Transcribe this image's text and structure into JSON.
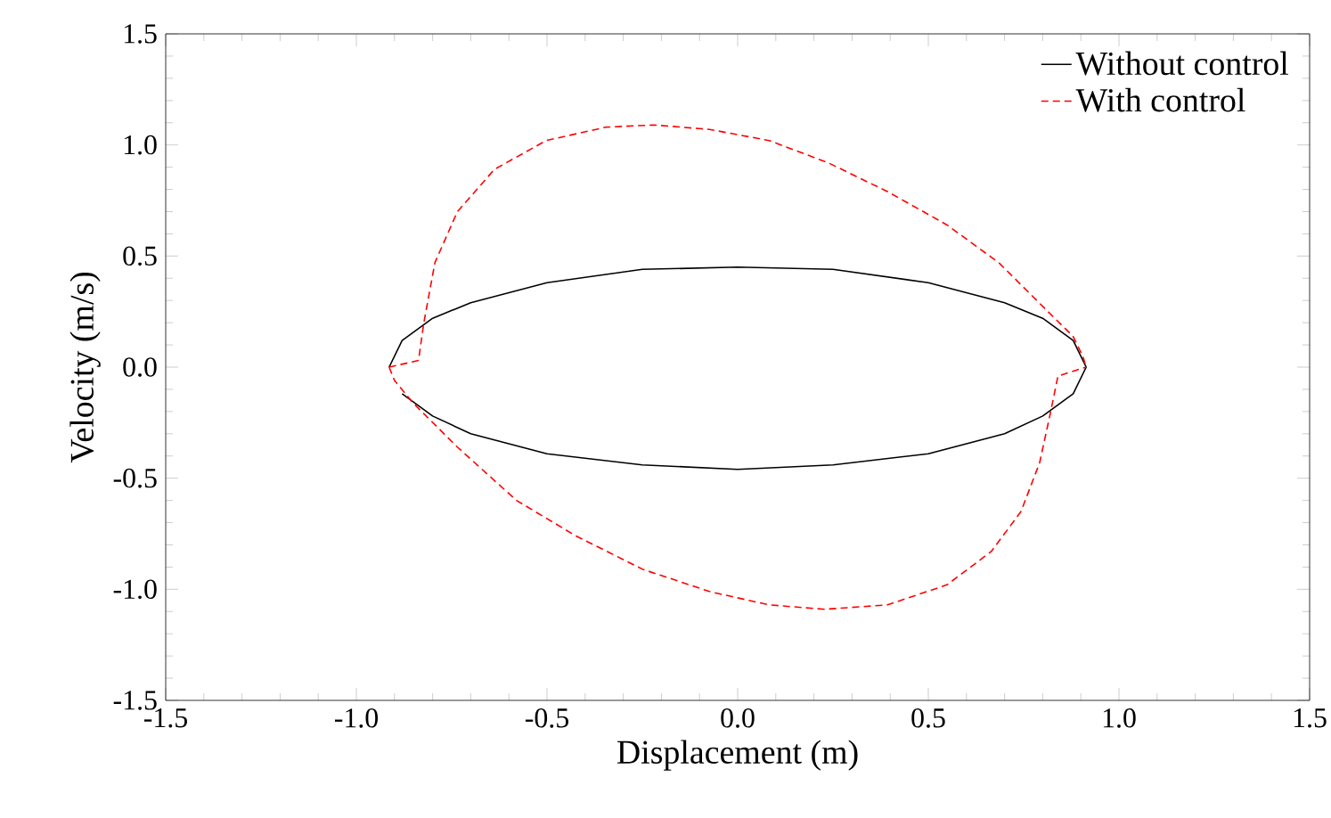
{
  "chart_data": {
    "type": "line",
    "xlabel": "Displacement (m)",
    "ylabel": "Velocity (m/s)",
    "xlim": [
      -1.5,
      1.5
    ],
    "ylim": [
      -1.5,
      1.5
    ],
    "xticks": [
      -1.5,
      {
        "value": -1,
        "label": "-1.0"
      },
      -0.5,
      {
        "value": 0,
        "label": "0.0"
      },
      0.5,
      {
        "value": 1,
        "label": "1.0"
      },
      1.5
    ],
    "yticks": [
      -1.5,
      {
        "value": -1,
        "label": "-1.0"
      },
      -0.5,
      {
        "value": 0,
        "label": "0.0"
      },
      0.5,
      {
        "value": 1,
        "label": "1.0"
      },
      1.5
    ],
    "grid": false,
    "legend": "top right",
    "marker": "none",
    "series": [
      {
        "name": "Without control",
        "color": "#000000",
        "line_style": "solid",
        "x": [
          -0.914,
          -0.88,
          -0.8,
          -0.7,
          -0.5,
          -0.25,
          0,
          0.25,
          0.5,
          0.7,
          0.8,
          0.88,
          0.914,
          0.88,
          0.8,
          0.7,
          0.5,
          0.25,
          0,
          -0.25,
          -0.5,
          -0.7,
          -0.8,
          -0.88
        ],
        "values": [
          0,
          0.12,
          0.22,
          0.29,
          0.38,
          0.44,
          0.45,
          0.44,
          0.38,
          0.29,
          0.22,
          0.12,
          0,
          -0.12,
          -0.22,
          -0.3,
          -0.39,
          -0.44,
          -0.46,
          -0.44,
          -0.39,
          -0.3,
          -0.22,
          -0.12
        ]
      },
      {
        "name": "With control",
        "color": "#ff0000",
        "line_style": "dashed",
        "x": [
          -0.914,
          -0.837,
          -0.823,
          -0.794,
          -0.735,
          -0.638,
          -0.502,
          -0.346,
          -0.22,
          -0.074,
          0.082,
          0.237,
          0.393,
          0.549,
          0.685,
          0.802,
          0.879,
          0.905,
          0.914
        ],
        "values": [
          0,
          0.03,
          0.2,
          0.47,
          0.7,
          0.89,
          1.02,
          1.08,
          1.09,
          1.07,
          1.02,
          0.92,
          0.79,
          0.64,
          0.47,
          0.27,
          0.14,
          0.05,
          0
        ]
      },
      {
        "color": "#ff0000",
        "line_style": "dashed",
        "x": [
          -0.914,
          -0.9,
          -0.852,
          -0.735,
          -0.58,
          -0.424,
          -0.249,
          -0.074,
          0.082,
          0.228,
          0.393,
          0.549,
          0.665,
          0.743,
          0.792,
          0.821,
          0.84,
          0.914
        ],
        "values": [
          0,
          -0.06,
          -0.16,
          -0.36,
          -0.6,
          -0.76,
          -0.91,
          -1.01,
          -1.07,
          -1.09,
          -1.07,
          -0.98,
          -0.83,
          -0.65,
          -0.43,
          -0.2,
          -0.04,
          0
        ]
      }
    ]
  }
}
